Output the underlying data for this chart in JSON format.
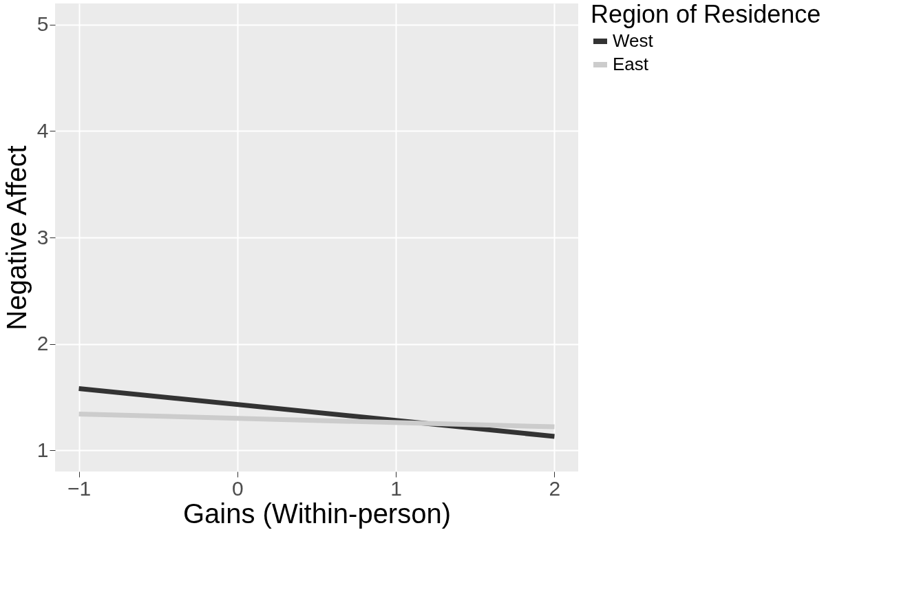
{
  "chart_data": {
    "type": "line",
    "xlabel": "Gains (Within-person)",
    "ylabel": "Negative Affect",
    "legend_title": "Region of Residence",
    "x": [
      -1,
      2
    ],
    "series": [
      {
        "name": "West",
        "color": "#333333",
        "values": [
          1.58,
          1.13
        ]
      },
      {
        "name": "East",
        "color": "#cccccc",
        "values": [
          1.34,
          1.22
        ]
      }
    ],
    "xlim": [
      -1.15,
      2.15
    ],
    "xticks": [
      -1,
      0,
      1,
      2
    ],
    "ylim": [
      0.8,
      5.2
    ],
    "yticks": [
      1,
      2,
      3,
      4,
      5
    ],
    "grid": true,
    "legend": "right",
    "marker": "none",
    "line_style": "solid"
  }
}
